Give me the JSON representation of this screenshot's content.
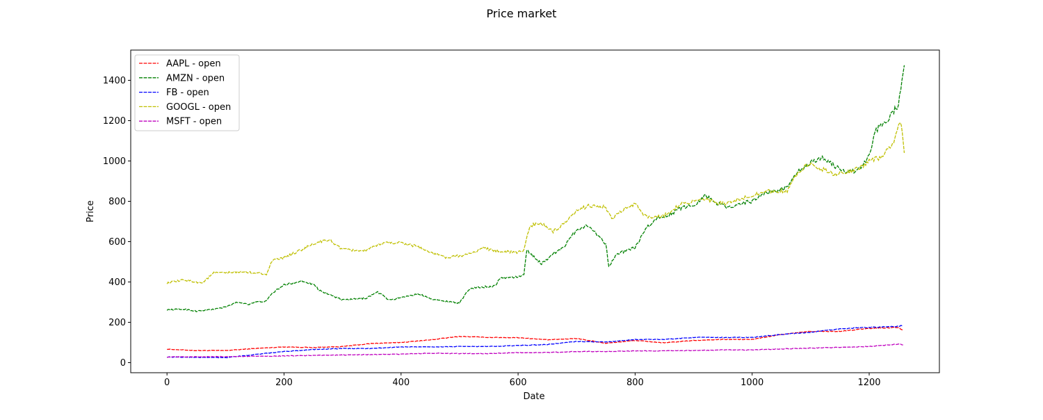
{
  "chart_data": {
    "type": "line",
    "title": "Price market",
    "xlabel": "Date",
    "ylabel": "Price",
    "xlim": [
      -62,
      1320
    ],
    "ylim": [
      -50,
      1550
    ],
    "xticks": [
      0,
      200,
      400,
      600,
      800,
      1000,
      1200
    ],
    "yticks": [
      0,
      200,
      400,
      600,
      800,
      1000,
      1200,
      1400
    ],
    "grid": false,
    "legend_position": "top-left",
    "line_style": "dashed",
    "series": [
      {
        "name": "AAPL - open",
        "color": "#ff0000",
        "points": [
          [
            0,
            67
          ],
          [
            50,
            60
          ],
          [
            100,
            60
          ],
          [
            150,
            70
          ],
          [
            200,
            78
          ],
          [
            250,
            75
          ],
          [
            300,
            80
          ],
          [
            350,
            95
          ],
          [
            400,
            100
          ],
          [
            450,
            113
          ],
          [
            500,
            130
          ],
          [
            550,
            125
          ],
          [
            600,
            124
          ],
          [
            650,
            113
          ],
          [
            700,
            120
          ],
          [
            750,
            96
          ],
          [
            800,
            110
          ],
          [
            850,
            98
          ],
          [
            900,
            110
          ],
          [
            950,
            115
          ],
          [
            1000,
            115
          ],
          [
            1050,
            140
          ],
          [
            1100,
            155
          ],
          [
            1150,
            155
          ],
          [
            1200,
            170
          ],
          [
            1250,
            175
          ],
          [
            1258,
            160
          ]
        ]
      },
      {
        "name": "AMZN - open",
        "color": "#008000",
        "points": [
          [
            0,
            262
          ],
          [
            30,
            265
          ],
          [
            50,
            255
          ],
          [
            80,
            265
          ],
          [
            100,
            275
          ],
          [
            120,
            300
          ],
          [
            140,
            290
          ],
          [
            150,
            300
          ],
          [
            170,
            305
          ],
          [
            180,
            345
          ],
          [
            200,
            385
          ],
          [
            230,
            405
          ],
          [
            250,
            390
          ],
          [
            260,
            360
          ],
          [
            300,
            310
          ],
          [
            340,
            320
          ],
          [
            360,
            350
          ],
          [
            380,
            310
          ],
          [
            410,
            330
          ],
          [
            430,
            340
          ],
          [
            460,
            310
          ],
          [
            490,
            300
          ],
          [
            500,
            295
          ],
          [
            510,
            340
          ],
          [
            520,
            370
          ],
          [
            560,
            380
          ],
          [
            570,
            420
          ],
          [
            600,
            425
          ],
          [
            610,
            435
          ],
          [
            615,
            560
          ],
          [
            625,
            530
          ],
          [
            640,
            490
          ],
          [
            660,
            540
          ],
          [
            680,
            580
          ],
          [
            700,
            660
          ],
          [
            720,
            680
          ],
          [
            735,
            635
          ],
          [
            750,
            590
          ],
          [
            755,
            480
          ],
          [
            770,
            540
          ],
          [
            800,
            570
          ],
          [
            820,
            670
          ],
          [
            840,
            720
          ],
          [
            860,
            735
          ],
          [
            880,
            770
          ],
          [
            900,
            780
          ],
          [
            920,
            830
          ],
          [
            940,
            790
          ],
          [
            960,
            770
          ],
          [
            980,
            790
          ],
          [
            1000,
            800
          ],
          [
            1020,
            840
          ],
          [
            1040,
            850
          ],
          [
            1060,
            870
          ],
          [
            1080,
            950
          ],
          [
            1100,
            990
          ],
          [
            1120,
            1020
          ],
          [
            1140,
            975
          ],
          [
            1160,
            950
          ],
          [
            1180,
            950
          ],
          [
            1200,
            1020
          ],
          [
            1210,
            1150
          ],
          [
            1230,
            1200
          ],
          [
            1250,
            1280
          ],
          [
            1258,
            1450
          ],
          [
            1260,
            1475
          ]
        ]
      },
      {
        "name": "FB - open",
        "color": "#0000ff",
        "points": [
          [
            0,
            28
          ],
          [
            50,
            26
          ],
          [
            100,
            25
          ],
          [
            150,
            40
          ],
          [
            200,
            55
          ],
          [
            250,
            65
          ],
          [
            300,
            70
          ],
          [
            350,
            70
          ],
          [
            400,
            78
          ],
          [
            450,
            78
          ],
          [
            500,
            80
          ],
          [
            550,
            80
          ],
          [
            600,
            85
          ],
          [
            650,
            90
          ],
          [
            700,
            105
          ],
          [
            750,
            102
          ],
          [
            800,
            115
          ],
          [
            850,
            115
          ],
          [
            900,
            125
          ],
          [
            950,
            125
          ],
          [
            1000,
            125
          ],
          [
            1050,
            140
          ],
          [
            1100,
            150
          ],
          [
            1150,
            168
          ],
          [
            1200,
            175
          ],
          [
            1250,
            180
          ],
          [
            1258,
            185
          ]
        ]
      },
      {
        "name": "GOOGL - open",
        "color": "#bfbf00",
        "points": [
          [
            0,
            395
          ],
          [
            30,
            410
          ],
          [
            60,
            395
          ],
          [
            80,
            445
          ],
          [
            100,
            445
          ],
          [
            130,
            450
          ],
          [
            170,
            440
          ],
          [
            180,
            505
          ],
          [
            200,
            520
          ],
          [
            230,
            560
          ],
          [
            260,
            600
          ],
          [
            280,
            605
          ],
          [
            300,
            560
          ],
          [
            340,
            555
          ],
          [
            370,
            595
          ],
          [
            400,
            595
          ],
          [
            430,
            575
          ],
          [
            450,
            545
          ],
          [
            480,
            520
          ],
          [
            500,
            530
          ],
          [
            520,
            540
          ],
          [
            540,
            570
          ],
          [
            560,
            555
          ],
          [
            600,
            545
          ],
          [
            610,
            560
          ],
          [
            620,
            680
          ],
          [
            640,
            690
          ],
          [
            660,
            650
          ],
          [
            680,
            690
          ],
          [
            700,
            750
          ],
          [
            720,
            780
          ],
          [
            750,
            770
          ],
          [
            760,
            710
          ],
          [
            780,
            760
          ],
          [
            800,
            785
          ],
          [
            820,
            720
          ],
          [
            850,
            730
          ],
          [
            880,
            790
          ],
          [
            900,
            800
          ],
          [
            920,
            810
          ],
          [
            940,
            790
          ],
          [
            960,
            790
          ],
          [
            980,
            810
          ],
          [
            1000,
            830
          ],
          [
            1020,
            850
          ],
          [
            1040,
            850
          ],
          [
            1060,
            850
          ],
          [
            1080,
            950
          ],
          [
            1100,
            990
          ],
          [
            1120,
            960
          ],
          [
            1140,
            935
          ],
          [
            1160,
            940
          ],
          [
            1180,
            960
          ],
          [
            1200,
            1000
          ],
          [
            1220,
            1020
          ],
          [
            1240,
            1080
          ],
          [
            1250,
            1170
          ],
          [
            1255,
            1180
          ],
          [
            1260,
            1040
          ]
        ]
      },
      {
        "name": "MSFT - open",
        "color": "#bf00bf",
        "points": [
          [
            0,
            28
          ],
          [
            100,
            30
          ],
          [
            200,
            33
          ],
          [
            300,
            38
          ],
          [
            400,
            42
          ],
          [
            450,
            47
          ],
          [
            500,
            45
          ],
          [
            550,
            45
          ],
          [
            600,
            50
          ],
          [
            650,
            50
          ],
          [
            700,
            55
          ],
          [
            750,
            55
          ],
          [
            800,
            58
          ],
          [
            850,
            58
          ],
          [
            900,
            60
          ],
          [
            950,
            63
          ],
          [
            1000,
            63
          ],
          [
            1050,
            68
          ],
          [
            1100,
            72
          ],
          [
            1150,
            76
          ],
          [
            1200,
            80
          ],
          [
            1250,
            92
          ],
          [
            1258,
            88
          ]
        ]
      }
    ]
  }
}
